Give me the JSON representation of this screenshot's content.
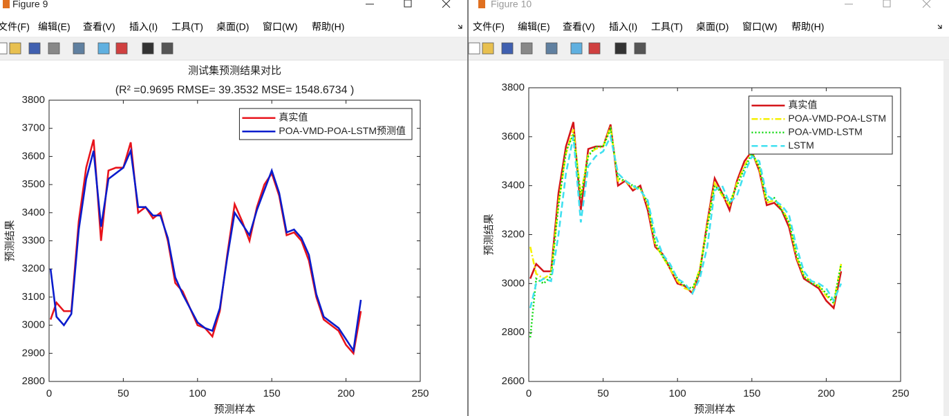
{
  "windows": [
    {
      "title": "Figure 9",
      "menu": [
        "文件(F)",
        "编辑(E)",
        "查看(V)",
        "插入(I)",
        "工具(T)",
        "桌面(D)",
        "窗口(W)",
        "帮助(H)"
      ]
    },
    {
      "title": "Figure 10",
      "menu": [
        "文件(F)",
        "编辑(E)",
        "查看(V)",
        "插入(I)",
        "工具(T)",
        "桌面(D)",
        "窗口(W)",
        "帮助(H)"
      ]
    }
  ],
  "chart_data": [
    {
      "type": "line",
      "title": "测试集预测结果对比",
      "subtitle": "(R² =0.9695 RMSE= 39.3532 MSE= 1548.6734 )",
      "x_label": "预测样本",
      "y_label": "预测结果",
      "x": [
        1,
        5,
        10,
        15,
        20,
        25,
        30,
        35,
        40,
        45,
        50,
        55,
        60,
        65,
        70,
        75,
        80,
        85,
        90,
        95,
        100,
        105,
        110,
        115,
        120,
        125,
        130,
        135,
        140,
        145,
        150,
        155,
        160,
        165,
        170,
        175,
        180,
        185,
        190,
        195,
        200,
        205,
        210
      ],
      "xlim": [
        0,
        250
      ],
      "xticks": [
        0,
        50,
        100,
        150,
        200,
        250
      ],
      "ylim": [
        2800,
        3800
      ],
      "yticks": [
        2800,
        2900,
        3000,
        3100,
        3200,
        3300,
        3400,
        3500,
        3600,
        3700,
        3800
      ],
      "legend": "upper right",
      "series": [
        {
          "name": "真实值",
          "color": "#e8141c",
          "linestyle": "-",
          "values": [
            3020,
            3080,
            3050,
            3050,
            3370,
            3560,
            3660,
            3300,
            3550,
            3560,
            3560,
            3650,
            3400,
            3420,
            3380,
            3400,
            3300,
            3150,
            3120,
            3060,
            3000,
            2990,
            2960,
            3050,
            3250,
            3430,
            3370,
            3300,
            3420,
            3500,
            3540,
            3460,
            3320,
            3330,
            3300,
            3230,
            3100,
            3020,
            3000,
            2980,
            2930,
            2900,
            3050
          ]
        },
        {
          "name": "POA-VMD-POA-LSTM预测值",
          "color": "#0a1ccc",
          "linestyle": "-",
          "values": [
            3200,
            3030,
            3000,
            3040,
            3340,
            3520,
            3620,
            3350,
            3520,
            3540,
            3560,
            3620,
            3420,
            3420,
            3390,
            3390,
            3310,
            3170,
            3110,
            3060,
            3010,
            2990,
            2980,
            3060,
            3240,
            3400,
            3360,
            3320,
            3410,
            3480,
            3550,
            3470,
            3330,
            3340,
            3310,
            3250,
            3110,
            3030,
            3010,
            2990,
            2950,
            2910,
            3090
          ]
        }
      ]
    },
    {
      "type": "line",
      "x_label": "预测样本",
      "y_label": "预测结果",
      "x": [
        1,
        5,
        10,
        15,
        20,
        25,
        30,
        35,
        40,
        45,
        50,
        55,
        60,
        65,
        70,
        75,
        80,
        85,
        90,
        95,
        100,
        105,
        110,
        115,
        120,
        125,
        130,
        135,
        140,
        145,
        150,
        155,
        160,
        165,
        170,
        175,
        180,
        185,
        190,
        195,
        200,
        205,
        210
      ],
      "xlim": [
        0,
        250
      ],
      "xticks": [
        0,
        50,
        100,
        150,
        200,
        250
      ],
      "ylim": [
        2600,
        3800
      ],
      "yticks": [
        2600,
        2800,
        3000,
        3200,
        3400,
        3600,
        3800
      ],
      "legend": "upper right",
      "series": [
        {
          "name": "真实值",
          "color": "#d41419",
          "linestyle": "-",
          "values": [
            3020,
            3080,
            3050,
            3050,
            3370,
            3560,
            3660,
            3300,
            3550,
            3560,
            3560,
            3650,
            3400,
            3420,
            3380,
            3400,
            3300,
            3150,
            3120,
            3060,
            3000,
            2990,
            2960,
            3050,
            3250,
            3430,
            3370,
            3300,
            3420,
            3500,
            3540,
            3460,
            3320,
            3330,
            3300,
            3230,
            3100,
            3020,
            3000,
            2980,
            2930,
            2900,
            3050
          ]
        },
        {
          "name": "POA-VMD-POA-LSTM",
          "color": "#f5f000",
          "linestyle": "-.",
          "values": [
            3150,
            3040,
            3020,
            3040,
            3330,
            3530,
            3630,
            3360,
            3530,
            3550,
            3560,
            3640,
            3420,
            3420,
            3390,
            3390,
            3320,
            3160,
            3110,
            3060,
            3010,
            2980,
            2970,
            3060,
            3240,
            3410,
            3360,
            3320,
            3410,
            3480,
            3540,
            3470,
            3330,
            3340,
            3310,
            3250,
            3110,
            3030,
            3010,
            2990,
            2950,
            2920,
            3080
          ]
        },
        {
          "name": "POA-VMD-LSTM",
          "color": "#10d810",
          "linestyle": ":",
          "values": [
            2780,
            3020,
            3000,
            3030,
            3320,
            3540,
            3610,
            3350,
            3520,
            3560,
            3560,
            3630,
            3430,
            3420,
            3400,
            3390,
            3330,
            3170,
            3110,
            3070,
            3020,
            2990,
            2980,
            3050,
            3230,
            3400,
            3370,
            3330,
            3400,
            3470,
            3530,
            3480,
            3340,
            3350,
            3300,
            3250,
            3120,
            3030,
            3000,
            2990,
            2960,
            2920,
            3080
          ]
        },
        {
          "name": "LSTM",
          "color": "#40e0f0",
          "linestyle": "--",
          "values": [
            2900,
            3000,
            3020,
            3010,
            3200,
            3450,
            3600,
            3250,
            3480,
            3520,
            3540,
            3600,
            3450,
            3420,
            3400,
            3380,
            3340,
            3200,
            3120,
            3080,
            3020,
            3000,
            2960,
            3020,
            3150,
            3380,
            3400,
            3330,
            3360,
            3450,
            3520,
            3500,
            3360,
            3340,
            3320,
            3280,
            3150,
            3050,
            3010,
            3000,
            2980,
            2930,
            3000
          ]
        }
      ]
    }
  ]
}
